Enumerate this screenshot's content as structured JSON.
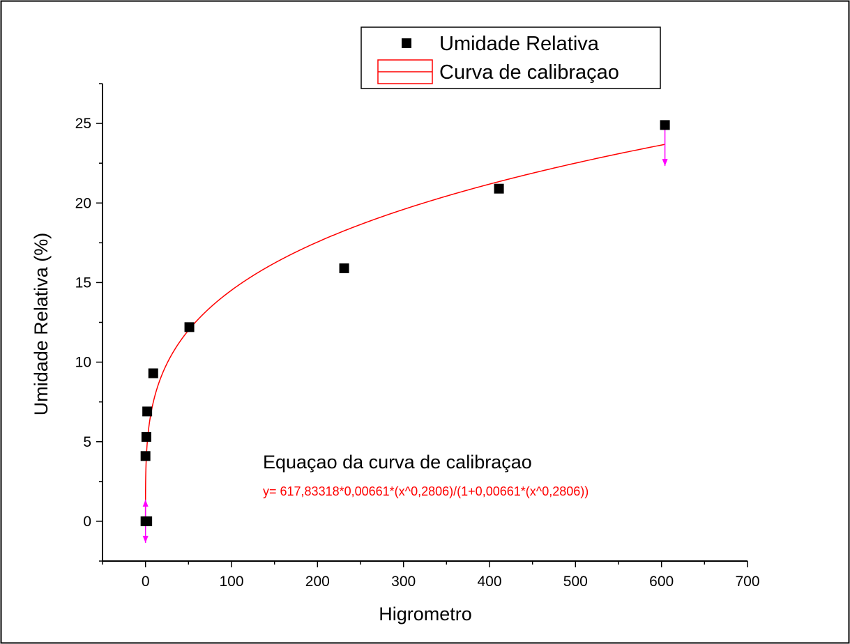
{
  "chart_data": {
    "type": "scatter",
    "xlabel": "Higrometro",
    "ylabel": "Umidade Relativa (%)",
    "xlim": [
      -50,
      700
    ],
    "ylim": [
      -2.5,
      27.5
    ],
    "x_ticks": [
      0,
      100,
      200,
      300,
      400,
      500,
      600,
      700
    ],
    "y_ticks": [
      0,
      5,
      10,
      15,
      20,
      25
    ],
    "grid": false,
    "legend_position": "top-center",
    "series": [
      {
        "name": "Umidade Relativa",
        "kind": "scatter",
        "marker": "square",
        "color": "#000000",
        "points": [
          {
            "x": 0,
            "y": 0
          },
          {
            "x": 2,
            "y": 0
          },
          {
            "x": 0,
            "y": 4.1
          },
          {
            "x": 1,
            "y": 5.3
          },
          {
            "x": 2,
            "y": 6.9
          },
          {
            "x": 9,
            "y": 9.3
          },
          {
            "x": 51,
            "y": 12.2
          },
          {
            "x": 231,
            "y": 15.9
          },
          {
            "x": 411,
            "y": 20.9
          },
          {
            "x": 604,
            "y": 24.9
          }
        ]
      },
      {
        "name": "Curva de calibraçao",
        "kind": "line",
        "color": "#ff0000",
        "x_range": [
          0,
          604
        ],
        "model": {
          "A": 617.83318,
          "B": 0.00661,
          "n": 0.2806
        }
      }
    ],
    "range_markers": {
      "color": "#ff00ff",
      "x": [
        0,
        604
      ]
    },
    "annotation": {
      "title": "Equaçao da curva de calibraçao",
      "equation": "y= 617,83318*0,00661*(x^0,2806)/(1+0,00661*(x^0,2806))"
    }
  }
}
